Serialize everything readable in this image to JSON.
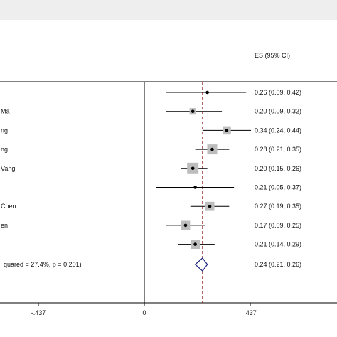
{
  "chart_data": {
    "type": "forest",
    "column_header": "ES (95% CI)",
    "studies": [
      {
        "label": "",
        "es": 0.26,
        "lo": 0.09,
        "hi": 0.42,
        "ci_text": "0.26 (0.09, 0.42)",
        "weight": 0.0
      },
      {
        "label": "Ma",
        "es": 0.2,
        "lo": 0.09,
        "hi": 0.32,
        "ci_text": "0.20 (0.09, 0.32)",
        "weight": 0.15
      },
      {
        "label": "ng",
        "es": 0.34,
        "lo": 0.24,
        "hi": 0.44,
        "ci_text": "0.34 (0.24, 0.44)",
        "weight": 0.45
      },
      {
        "label": "ng",
        "es": 0.28,
        "lo": 0.21,
        "hi": 0.35,
        "ci_text": "0.28 (0.21, 0.35)",
        "weight": 0.75
      },
      {
        "label": "Vang",
        "es": 0.2,
        "lo": 0.15,
        "hi": 0.26,
        "ci_text": "0.20 (0.15, 0.26)",
        "weight": 1.0
      },
      {
        "label": "",
        "es": 0.21,
        "lo": 0.05,
        "hi": 0.37,
        "ci_text": "0.21 (0.05, 0.37)",
        "weight": 0.0
      },
      {
        "label": "Chen",
        "es": 0.27,
        "lo": 0.19,
        "hi": 0.35,
        "ci_text": "0.27 (0.19, 0.35)",
        "weight": 0.6
      },
      {
        "label": "en",
        "es": 0.17,
        "lo": 0.09,
        "hi": 0.25,
        "ci_text": "0.17 (0.09, 0.25)",
        "weight": 0.6
      },
      {
        "label": "",
        "es": 0.21,
        "lo": 0.14,
        "hi": 0.29,
        "ci_text": "0.21 (0.14, 0.29)",
        "weight": 0.6
      }
    ],
    "overall": {
      "label": "quared = 27.4%, p = 0.201)",
      "es": 0.24,
      "lo": 0.21,
      "hi": 0.26,
      "ci_text": "0.24 (0.21, 0.26)"
    },
    "xticks": [
      {
        "value": -0.437,
        "label": "-.437"
      },
      {
        "value": 0,
        "label": "0"
      },
      {
        "value": 0.437,
        "label": ".437"
      }
    ],
    "xlim": [
      -0.55,
      0.58
    ],
    "null_line": 0,
    "colors": {
      "point": "#000000",
      "box": "#bdbdbd",
      "diamond": "#1a237e",
      "overall_line": "#8b1a1a",
      "axis": "#000000"
    }
  }
}
